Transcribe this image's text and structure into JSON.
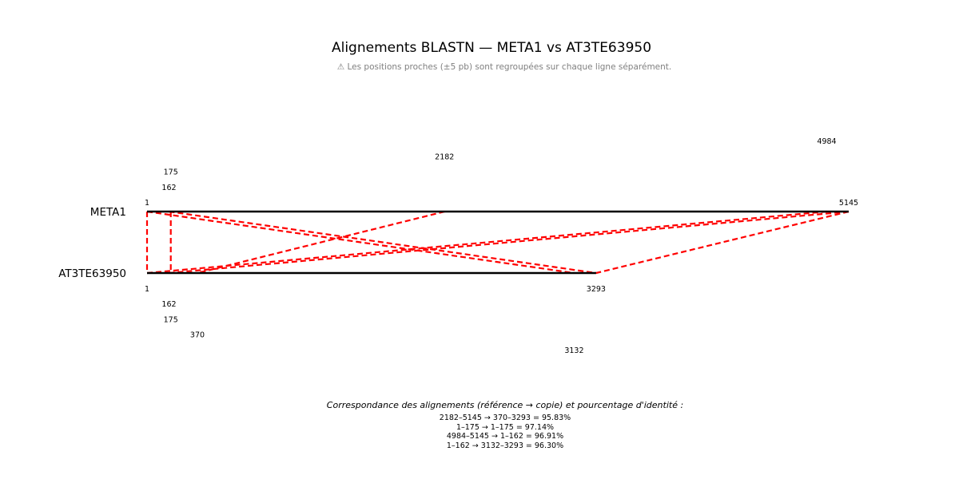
{
  "chart_data": {
    "type": "alignment",
    "title": "Alignements BLASTN — META1 vs AT3TE63950",
    "subtitle": "⚠ Les positions proches (±5 pb) sont regroupées sur chaque ligne séparément.",
    "reference": {
      "name": "META1",
      "length": 5145,
      "position_labels": [
        "1",
        "162",
        "175",
        "2182",
        "4984",
        "5145"
      ]
    },
    "copy": {
      "name": "AT3TE63950",
      "length": 3293,
      "position_labels": [
        "1",
        "162",
        "175",
        "370",
        "3132",
        "3293"
      ]
    },
    "alignments": [
      {
        "ref_start": 2182,
        "ref_end": 5145,
        "copy_start": 370,
        "copy_end": 3293,
        "identity": 95.83
      },
      {
        "ref_start": 1,
        "ref_end": 175,
        "copy_start": 1,
        "copy_end": 175,
        "identity": 97.14
      },
      {
        "ref_start": 4984,
        "ref_end": 5145,
        "copy_start": 1,
        "copy_end": 162,
        "identity": 96.91
      },
      {
        "ref_start": 1,
        "ref_end": 162,
        "copy_start": 3132,
        "copy_end": 3293,
        "identity": 96.3
      }
    ],
    "caption": {
      "heading": "Correspondance des alignements (référence → copie) et pourcentage d'identité :",
      "lines": [
        "2182–5145 → 370–3293 = 95.83%",
        "1–175 → 1–175 = 97.14%",
        "4984–5145 → 1–162 = 96.91%",
        "1–162 → 3132–3293 = 96.30%"
      ]
    },
    "colors": {
      "sequence_line": "#000000",
      "alignment_line": "#ff0000"
    }
  }
}
